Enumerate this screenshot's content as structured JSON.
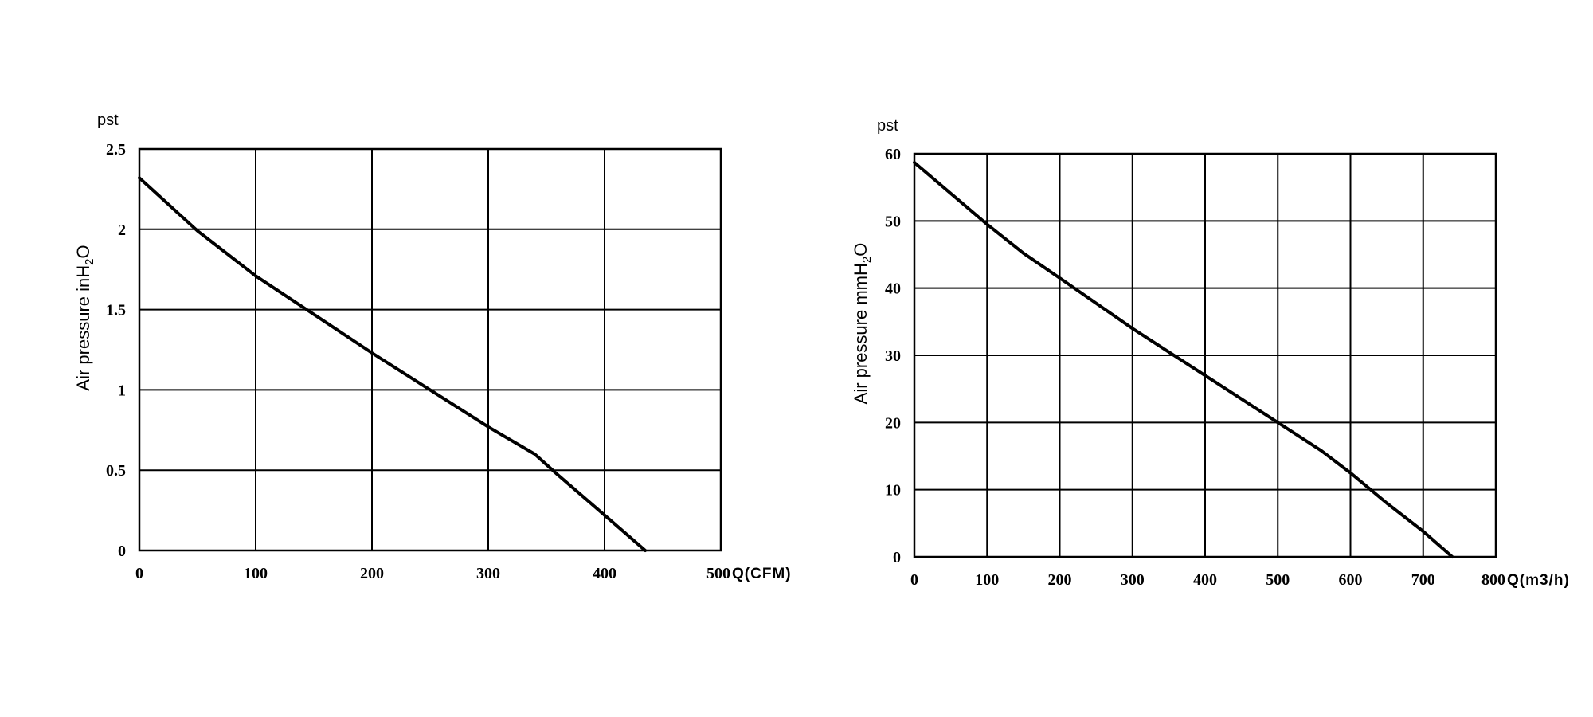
{
  "chart_data": [
    {
      "type": "line",
      "pst_label": "pst",
      "ylabel_main": "Air pressure inH",
      "ylabel_sub": "2",
      "ylabel_tail": "O",
      "x_unit": "Q(CFM)",
      "xlim": [
        0,
        500
      ],
      "ylim": [
        0,
        2.5
      ],
      "x_ticks": [
        0,
        100,
        200,
        300,
        400,
        500
      ],
      "x_tick_labels": [
        "0",
        "100",
        "200",
        "300",
        "400",
        "500"
      ],
      "y_ticks": [
        0,
        0.5,
        1,
        1.5,
        2,
        2.5
      ],
      "y_tick_labels": [
        "0",
        "0.5",
        "1",
        "1.5",
        "2",
        "2.5"
      ],
      "grid": true,
      "series": [
        {
          "x": [
            0,
            50,
            100,
            150,
            200,
            250,
            300,
            340,
            360,
            400,
            435
          ],
          "y": [
            2.32,
            1.99,
            1.71,
            1.47,
            1.23,
            1.0,
            0.77,
            0.6,
            0.47,
            0.22,
            0.0
          ]
        }
      ]
    },
    {
      "type": "line",
      "pst_label": "pst",
      "ylabel_main": "Air pressure mmH",
      "ylabel_sub": "2",
      "ylabel_tail": "O",
      "x_unit": "Q(m3/h)",
      "xlim": [
        0,
        800
      ],
      "ylim": [
        0,
        60
      ],
      "x_ticks": [
        0,
        100,
        200,
        300,
        400,
        500,
        600,
        700,
        800
      ],
      "x_tick_labels": [
        "0",
        "100",
        "200",
        "300",
        "400",
        "500",
        "600",
        "700",
        "800"
      ],
      "y_ticks": [
        0,
        10,
        20,
        30,
        40,
        50,
        60
      ],
      "y_tick_labels": [
        "0",
        "10",
        "20",
        "30",
        "40",
        "50",
        "60"
      ],
      "grid": true,
      "series": [
        {
          "x": [
            0,
            100,
            150,
            200,
            300,
            400,
            500,
            560,
            600,
            650,
            700,
            740
          ],
          "y": [
            58.7,
            49.5,
            45.2,
            41.5,
            34.0,
            27.0,
            20.0,
            15.8,
            12.5,
            8.0,
            3.8,
            0.0
          ]
        }
      ]
    }
  ]
}
